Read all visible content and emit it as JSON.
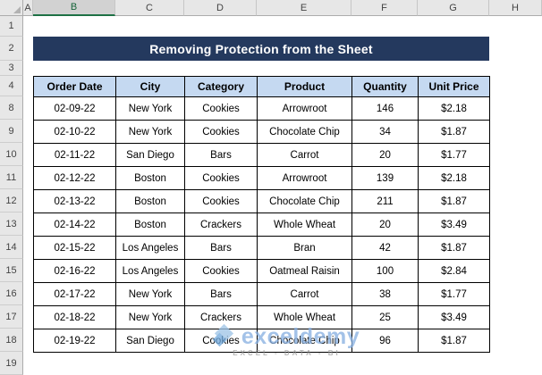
{
  "sheet": {
    "column_headers": [
      "A",
      "B",
      "C",
      "D",
      "E",
      "F",
      "G",
      "H"
    ],
    "selected_column": "B",
    "row_headers": [
      "1",
      "2",
      "3",
      "4",
      "8",
      "9",
      "10",
      "11",
      "12",
      "13",
      "14",
      "15",
      "16",
      "17",
      "18",
      "19"
    ]
  },
  "banner": {
    "title": "Removing Protection from the Sheet"
  },
  "table": {
    "headers": [
      "Order Date",
      "City",
      "Category",
      "Product",
      "Quantity",
      "Unit Price"
    ],
    "rows": [
      [
        "02-09-22",
        "New York",
        "Cookies",
        "Arrowroot",
        "146",
        "$2.18"
      ],
      [
        "02-10-22",
        "New York",
        "Cookies",
        "Chocolate Chip",
        "34",
        "$1.87"
      ],
      [
        "02-11-22",
        "San Diego",
        "Bars",
        "Carrot",
        "20",
        "$1.77"
      ],
      [
        "02-12-22",
        "Boston",
        "Cookies",
        "Arrowroot",
        "139",
        "$2.18"
      ],
      [
        "02-13-22",
        "Boston",
        "Cookies",
        "Chocolate Chip",
        "211",
        "$1.87"
      ],
      [
        "02-14-22",
        "Boston",
        "Crackers",
        "Whole Wheat",
        "20",
        "$3.49"
      ],
      [
        "02-15-22",
        "Los Angeles",
        "Bars",
        "Bran",
        "42",
        "$1.87"
      ],
      [
        "02-16-22",
        "Los Angeles",
        "Cookies",
        "Oatmeal Raisin",
        "100",
        "$2.84"
      ],
      [
        "02-17-22",
        "New York",
        "Bars",
        "Carrot",
        "38",
        "$1.77"
      ],
      [
        "02-18-22",
        "New York",
        "Crackers",
        "Whole Wheat",
        "25",
        "$3.49"
      ],
      [
        "02-19-22",
        "San Diego",
        "Cookies",
        "Chocolate Chip",
        "96",
        "$1.87"
      ]
    ]
  },
  "watermark": {
    "brand": "exceldemy",
    "tagline": "EXCEL - DATA - BI"
  },
  "colors": {
    "banner_bg": "#24395E",
    "header_fill": "#C5D9F1",
    "selection_green": "#1E7145",
    "watermark_blue": "#89B1E1"
  }
}
